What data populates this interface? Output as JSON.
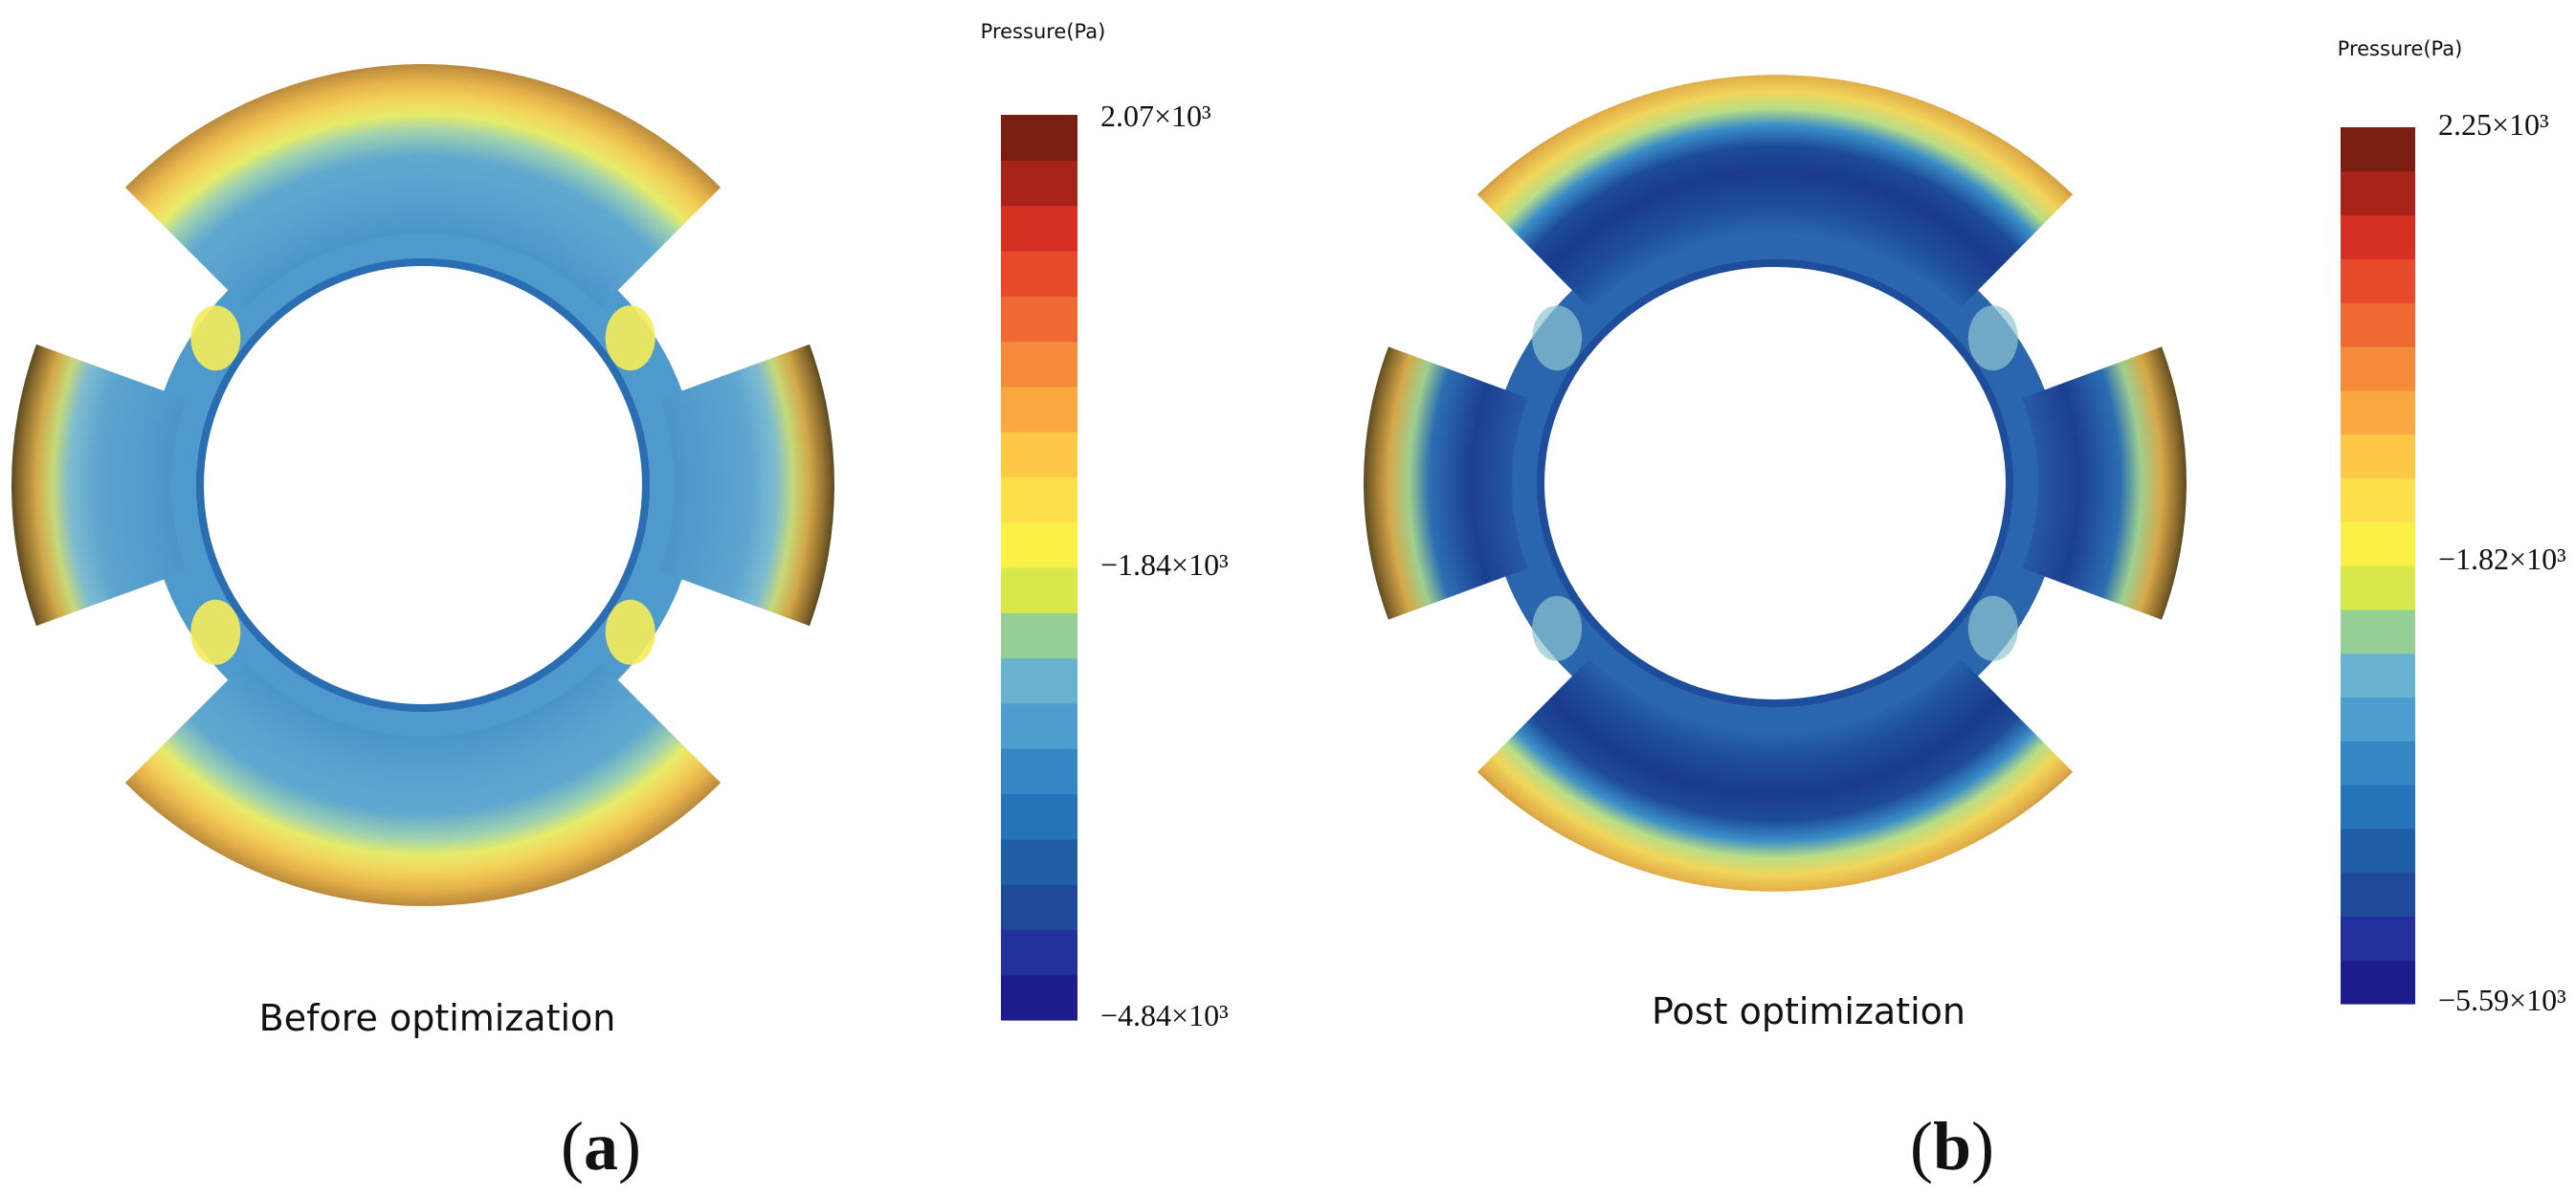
{
  "panels": [
    {
      "id": "a",
      "caption": "Before optimization",
      "label_open": "(",
      "label_letter": "a",
      "label_close": ")",
      "colorbar": {
        "title": "Pressure(Pa)",
        "max_label": "2.07×10³",
        "mid_label": "−1.84×10³",
        "min_label": "−4.84×10³"
      }
    },
    {
      "id": "b",
      "caption": "Post optimization",
      "label_open": "(",
      "label_letter": "b",
      "label_close": ")",
      "colorbar": {
        "title": "Pressure(Pa)",
        "max_label": "2.25×10³",
        "mid_label": "−1.82×10³",
        "min_label": "−5.59×10³"
      }
    }
  ],
  "colors": {
    "colormap": [
      "#1c1c8c",
      "#232f9a",
      "#1f4a9a",
      "#1f5fa6",
      "#2573b8",
      "#3586c5",
      "#4d9dcf",
      "#6ab3d0",
      "#95cf96",
      "#d6e84a",
      "#fbf046",
      "#fde04a",
      "#fcc845",
      "#faa840",
      "#f58a3a",
      "#ee6a32",
      "#e64a2a",
      "#d63022",
      "#a8241a",
      "#7a1e12"
    ]
  }
}
